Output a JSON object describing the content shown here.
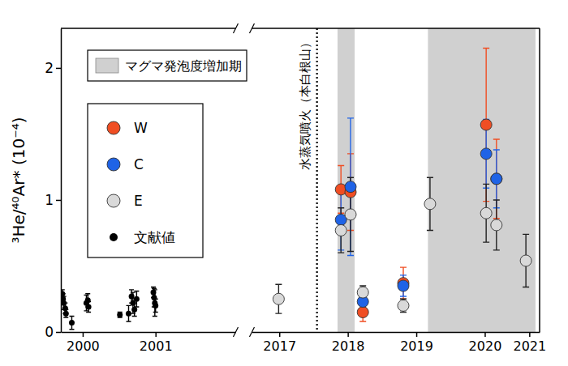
{
  "chart_data": {
    "type": "scatter",
    "y_label": "³He/⁴⁰Ar* (10⁻⁴)",
    "xlim": [
      2000.2,
      2021.3
    ],
    "x_break": [
      2002.6,
      2017.1
    ],
    "xticks": [
      {
        "value": 2000.5,
        "label": "2000"
      },
      {
        "value": 2001.5,
        "label": "2001"
      },
      {
        "value": 2017.5,
        "label": "2017"
      },
      {
        "value": 2018.5,
        "label": "2018"
      },
      {
        "value": 2019.5,
        "label": "2019"
      },
      {
        "value": 2020.5,
        "label": "2020"
      },
      {
        "value": 2021.15,
        "label": "2021"
      }
    ],
    "ylim": [
      0,
      2.3
    ],
    "yticks": [
      0,
      1,
      2
    ],
    "grid": false,
    "legend": "upper left",
    "shaded_periods": {
      "label": "マグマ発泡度増加期",
      "color": "#d0d0d0",
      "ranges": [
        [
          2018.35,
          2018.6
        ],
        [
          2019.67,
          2021.24
        ]
      ]
    },
    "annotations": [
      {
        "text": "水蒸気噴火（本白根山）",
        "x": 2018.05,
        "line_style": "dotted"
      }
    ],
    "series": [
      {
        "name": "W",
        "color": "#f04e23",
        "marker": "circle",
        "x": [
          2018.4,
          2018.54,
          2018.72,
          2019.31,
          2020.52,
          2020.67
        ],
        "values": [
          1.08,
          1.06,
          0.15,
          0.37,
          1.57,
          1.16
        ],
        "errors": [
          0.18,
          0.29,
          0.07,
          0.12,
          0.58,
          0.3
        ]
      },
      {
        "name": "C",
        "color": "#1f63e6",
        "marker": "circle",
        "x": [
          2018.4,
          2018.54,
          2018.72,
          2019.31,
          2020.52,
          2020.67
        ],
        "values": [
          0.85,
          1.1,
          0.23,
          0.35,
          1.35,
          1.16
        ],
        "errors": [
          0.23,
          0.52,
          0.05,
          0.08,
          0.26,
          0.22
        ]
      },
      {
        "name": "E",
        "color": "#d9d9d9",
        "marker": "circle",
        "x": [
          2017.49,
          2018.4,
          2018.54,
          2018.72,
          2019.31,
          2019.7,
          2020.52,
          2020.67,
          2021.1
        ],
        "values": [
          0.25,
          0.77,
          0.89,
          0.3,
          0.2,
          0.97,
          0.9,
          0.81,
          0.54
        ],
        "errors": [
          0.11,
          0.17,
          0.28,
          0.05,
          0.05,
          0.2,
          0.22,
          0.19,
          0.2
        ]
      },
      {
        "name": "文献値",
        "color": "#000000",
        "marker": "dot",
        "x": [
          2000.22,
          2000.23,
          2000.24,
          2000.26,
          2000.27,
          2000.35,
          2000.55,
          2000.57,
          2000.58,
          2001.01,
          2001.13,
          2001.17,
          2001.19,
          2001.21,
          2001.24,
          2001.47,
          2001.48,
          2001.49,
          2001.5
        ],
        "values": [
          0.29,
          0.25,
          0.22,
          0.18,
          0.14,
          0.07,
          0.22,
          0.24,
          0.19,
          0.13,
          0.14,
          0.27,
          0.22,
          0.17,
          0.25,
          0.3,
          0.26,
          0.22,
          0.2
        ],
        "errors": [
          0.03,
          0.04,
          0.05,
          0.04,
          0.03,
          0.05,
          0.06,
          0.05,
          0.04,
          0.02,
          0.06,
          0.05,
          0.08,
          0.05,
          0.06,
          0.04,
          0.07,
          0.1,
          0.05
        ]
      }
    ]
  }
}
